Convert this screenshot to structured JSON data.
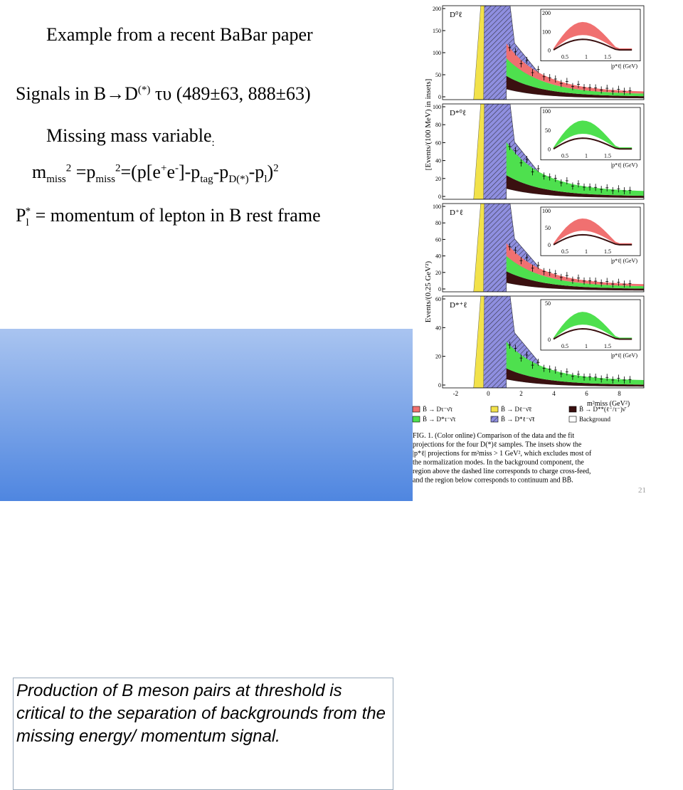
{
  "title": "Example from a recent BaBar paper",
  "signals": [
    "Signals in B",
    "→",
    "D",
    "(*)",
    " τυ (489±63, 888±63)"
  ],
  "missing": [
    "Missing mass variable",
    ":"
  ],
  "formula": [
    "m",
    "miss",
    "2",
    " =p",
    "miss",
    "2",
    "=(p[e",
    "+",
    "e",
    "-",
    "]-p",
    "tag",
    "-p",
    "D(*)",
    "-p",
    "l",
    ")",
    "2"
  ],
  "lepton": [
    "P",
    "l",
    "*",
    " = momentum of lepton in B rest frame"
  ],
  "box_text": "Production of B meson pairs at threshold is critical to the separation of backgrounds from the missing energy/ momentum signal.",
  "page_number": "21",
  "figure": {
    "y_label_main": "Events/(0.25 GeV²)",
    "y_label_inset": "[Events/(100 MeV) in insets]",
    "x_label": "m²miss (GeV²)",
    "inset_x_label": "|p*ℓ| (GeV)",
    "xticks": [
      "-2",
      "0",
      "2",
      "4",
      "6",
      "8"
    ],
    "inset_xticks": [
      "0.5",
      "1",
      "1.5"
    ],
    "panels": [
      {
        "label": "D⁰ℓ",
        "yticks": [
          "200",
          "150",
          "100",
          "50",
          "0"
        ],
        "inset_yticks": [
          "200",
          "100",
          "0"
        ]
      },
      {
        "label": "D*⁰ℓ",
        "yticks": [
          "100",
          "80",
          "60",
          "40",
          "20",
          "0"
        ],
        "inset_yticks": [
          "100",
          "50",
          "0"
        ]
      },
      {
        "label": "D⁺ℓ",
        "yticks": [
          "100",
          "80",
          "60",
          "40",
          "20",
          "0"
        ],
        "inset_yticks": [
          "100",
          "50",
          "0"
        ]
      },
      {
        "label": "D*⁺ℓ",
        "yticks": [
          "60",
          "40",
          "20",
          "0"
        ],
        "inset_yticks": [
          "50",
          "0"
        ]
      }
    ],
    "legend": [
      "B̄ → Dτ⁻ν̄τ",
      "B̄ → Dℓ⁻ν̄ℓ",
      "B̄ → D**(ℓ⁻/τ⁻)ν̄",
      "B̄ → D*τ⁻ν̄τ",
      "B̄ → D*ℓ⁻ν̄ℓ",
      "Background"
    ],
    "caption": [
      "FIG. 1.  (Color online) Comparison of the data and the fit",
      "projections for the four D(*)ℓ samples.  The insets show the",
      "|p*ℓ| projections for m²miss > 1 GeV², which excludes most of",
      "the normalization modes. In the background component, the",
      "region above the dashed line corresponds to charge cross-feed,",
      "and the region below corresponds to continuum and BB̄."
    ]
  }
}
